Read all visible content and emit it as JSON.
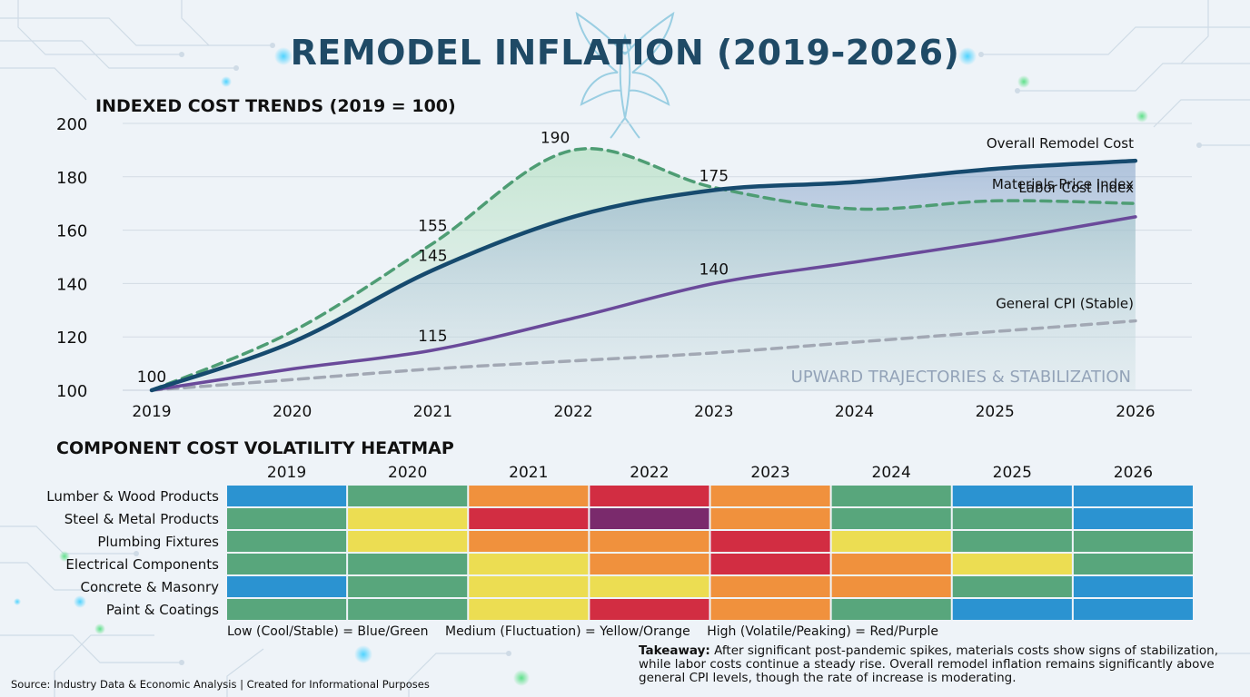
{
  "title": "REMODEL INFLATION (2019-2026)",
  "chart_data": [
    {
      "type": "line",
      "title": "INDEXED COST TRENDS (2019 = 100)",
      "x": [
        "2019",
        "2020",
        "2021",
        "2022",
        "2023",
        "2024",
        "2025",
        "2026"
      ],
      "ylim": [
        100,
        200
      ],
      "yticks": [
        100,
        120,
        140,
        160,
        180,
        200
      ],
      "grid": "horizontal",
      "series": [
        {
          "name": "Overall Remodel Cost",
          "values": [
            100,
            118,
            145,
            165,
            175,
            178,
            183,
            186
          ],
          "color": "#164a6e",
          "style": "solid"
        },
        {
          "name": "Materials Price Index",
          "values": [
            100,
            122,
            155,
            190,
            176,
            168,
            171,
            170
          ],
          "color": "#4e9d74",
          "style": "dashed"
        },
        {
          "name": "Labor Cost Index",
          "values": [
            100,
            108,
            115,
            127,
            140,
            148,
            156,
            165
          ],
          "color": "#6a4a9a",
          "style": "solid"
        },
        {
          "name": "General CPI (Stable)",
          "values": [
            100,
            104,
            108,
            111,
            114,
            118,
            122,
            126
          ],
          "color": "#a2a8b4",
          "style": "dashed"
        }
      ],
      "data_labels": [
        {
          "x": "2019",
          "value": "100"
        },
        {
          "x": "2021",
          "value": "155"
        },
        {
          "x": "2021",
          "value": "145"
        },
        {
          "x": "2021",
          "value": "115"
        },
        {
          "x": "2022",
          "value": "190"
        },
        {
          "x": "2023",
          "value": "175"
        },
        {
          "x": "2023",
          "value": "140"
        }
      ],
      "annotation": "UPWARD TRAJECTORIES & STABILIZATION"
    },
    {
      "type": "heatmap",
      "title": "COMPONENT COST VOLATILITY HEATMAP",
      "columns": [
        "2019",
        "2020",
        "2021",
        "2022",
        "2023",
        "2024",
        "2025",
        "2026"
      ],
      "rows": [
        "Lumber & Wood Products",
        "Steel & Metal Products",
        "Plumbing Fixtures",
        "Electrical Components",
        "Concrete & Masonry",
        "Paint & Coatings"
      ],
      "levels": {
        "blue": "#2b93d1",
        "green": "#58a67c",
        "yellow": "#ecdd52",
        "orange": "#f0913d",
        "red": "#d22d42",
        "purple": "#7a2a6c"
      },
      "cells": [
        [
          "blue",
          "green",
          "orange",
          "red",
          "orange",
          "green",
          "blue",
          "blue"
        ],
        [
          "green",
          "yellow",
          "red",
          "purple",
          "orange",
          "green",
          "green",
          "blue"
        ],
        [
          "green",
          "yellow",
          "orange",
          "orange",
          "red",
          "yellow",
          "green",
          "green"
        ],
        [
          "green",
          "green",
          "yellow",
          "orange",
          "red",
          "orange",
          "yellow",
          "green"
        ],
        [
          "blue",
          "green",
          "yellow",
          "yellow",
          "orange",
          "orange",
          "green",
          "blue"
        ],
        [
          "green",
          "green",
          "yellow",
          "red",
          "orange",
          "green",
          "blue",
          "blue"
        ]
      ]
    }
  ],
  "legend": {
    "low": "Low (Cool/Stable) = Blue/Green",
    "medium": "Medium (Fluctuation) = Yellow/Orange",
    "high": "High (Volatile/Peaking) = Red/Purple"
  },
  "takeaway": {
    "label": "Takeaway:",
    "text": "After significant post-pandemic spikes, materials costs show signs of stabilization, while labor costs continue a steady rise. Overall remodel inflation remains significantly above general CPI levels, though the rate of increase is moderating."
  },
  "source": "Source: Industry Data & Economic Analysis | Created for Informational Purposes"
}
